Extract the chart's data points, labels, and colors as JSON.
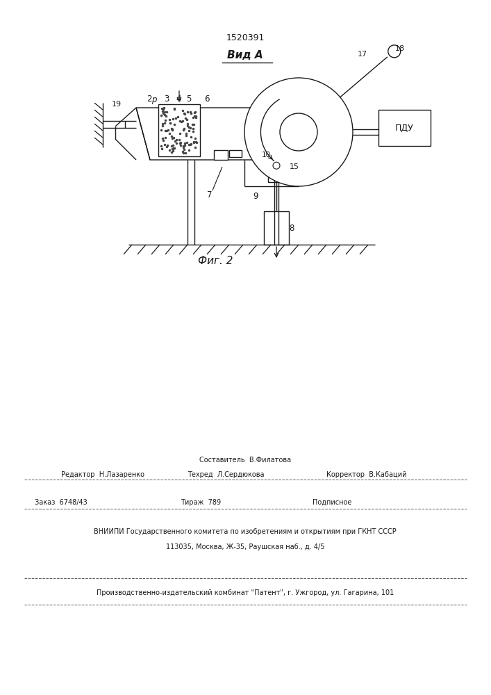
{
  "patent_number": "1520391",
  "view_label": "Вид А",
  "fig_label": "Фиг. 2",
  "bg_color": "#ffffff",
  "line_color": "#1a1a1a",
  "footer": {
    "sestavitel": "Составитель  В.Филатова",
    "redaktor": "Редактор  Н.Лазаренко",
    "tehred": "Техред  Л.Сердюкова",
    "korrektor": "Корректор  В.Кабаций",
    "zakaz": "Заказ  6748/43",
    "tirazh": "Тираж  789",
    "podpisnoe": "Подписное",
    "vniip1": "ВНИИПИ Государственного комитета по изобретениям и открытиям при ГКНТ СССР",
    "vniip2": "113035, Москва, Ж-35, Раушская наб., д. 4/5",
    "proizv": "Производственно-издательский комбинат \"Патент\", г. Ужгород, ул. Гагарина, 101"
  }
}
